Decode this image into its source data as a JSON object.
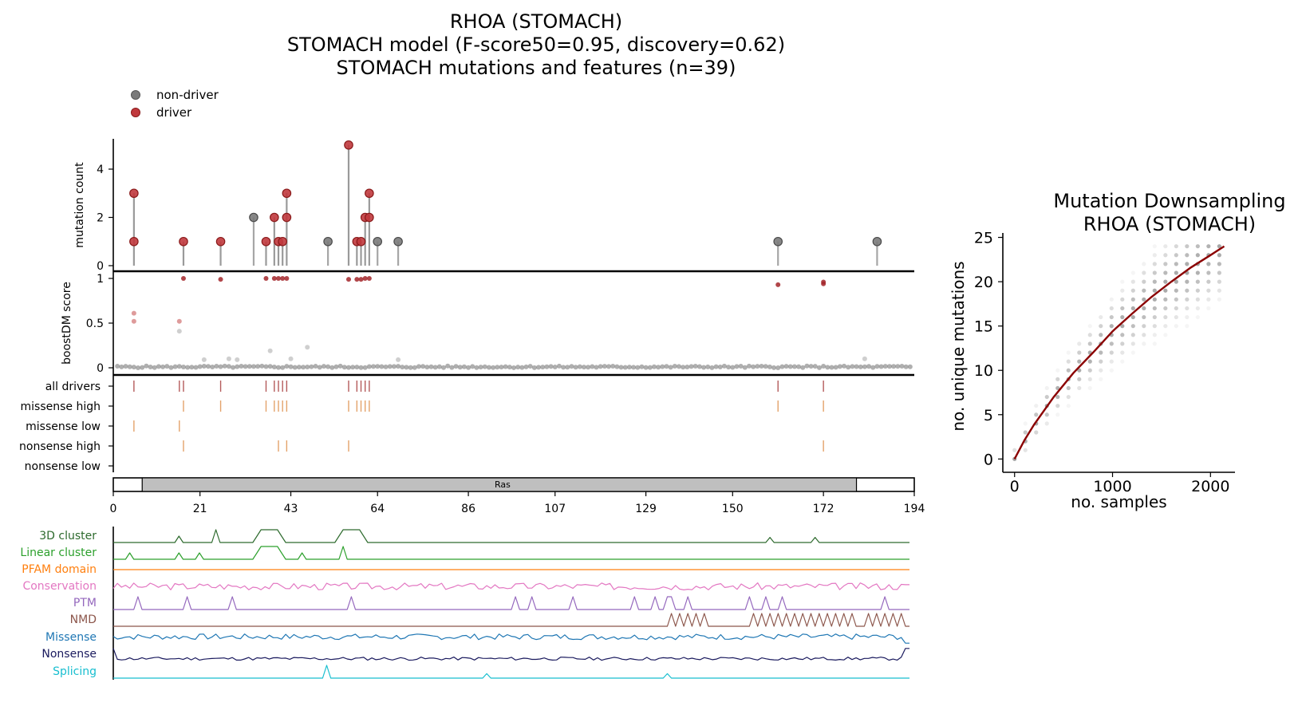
{
  "left_title": {
    "line1": "RHOA (STOMACH)",
    "line2": "STOMACH model (F-score50=0.95, discovery=0.62)",
    "line3": "STOMACH mutations and features (n=39)"
  },
  "right_title": {
    "line1": "Mutation Downsampling",
    "line2": "RHOA (STOMACH)"
  },
  "legend": {
    "items": [
      {
        "label": "non-driver",
        "color": "#666666"
      },
      {
        "label": "driver",
        "color": "#b21f24"
      }
    ]
  },
  "colors": {
    "driver": "#b21f24",
    "nondriver": "#6e6e6e",
    "all_drivers_tick": "#b45a5a",
    "class_tick": "#e3a26a",
    "domain_fill": "#bfbfbf",
    "trend_line": "#8b0000"
  },
  "chart_data": [
    {
      "type": "lollipop",
      "title": "RHOA (STOMACH)",
      "ylabel": "mutation count",
      "ylim": [
        0,
        5
      ],
      "yticks": [
        "0",
        "2",
        "4"
      ],
      "xlim": [
        0,
        194
      ],
      "points": [
        {
          "x": 5,
          "y": 1,
          "driver": true
        },
        {
          "x": 5,
          "y": 3,
          "driver": true
        },
        {
          "x": 17,
          "y": 1,
          "driver": true
        },
        {
          "x": 26,
          "y": 1,
          "driver": true
        },
        {
          "x": 34,
          "y": 2,
          "driver": false
        },
        {
          "x": 37,
          "y": 1,
          "driver": true
        },
        {
          "x": 39,
          "y": 2,
          "driver": true
        },
        {
          "x": 40,
          "y": 1,
          "driver": true
        },
        {
          "x": 41,
          "y": 1,
          "driver": true
        },
        {
          "x": 42,
          "y": 2,
          "driver": true
        },
        {
          "x": 42,
          "y": 3,
          "driver": true
        },
        {
          "x": 52,
          "y": 1,
          "driver": false
        },
        {
          "x": 57,
          "y": 5,
          "driver": true
        },
        {
          "x": 59,
          "y": 1,
          "driver": true
        },
        {
          "x": 60,
          "y": 1,
          "driver": true
        },
        {
          "x": 61,
          "y": 2,
          "driver": true
        },
        {
          "x": 62,
          "y": 2,
          "driver": true
        },
        {
          "x": 62,
          "y": 3,
          "driver": true
        },
        {
          "x": 64,
          "y": 1,
          "driver": false
        },
        {
          "x": 69,
          "y": 1,
          "driver": false
        },
        {
          "x": 161,
          "y": 1,
          "driver": false
        },
        {
          "x": 185,
          "y": 1,
          "driver": false
        }
      ]
    },
    {
      "type": "scatter",
      "ylabel": "boostDM score",
      "ylim": [
        0,
        1
      ],
      "yticks": [
        "0",
        "0.5",
        "1"
      ],
      "high_points": [
        {
          "x": 17,
          "y": 1.0
        },
        {
          "x": 26,
          "y": 0.99
        },
        {
          "x": 37,
          "y": 1.0
        },
        {
          "x": 39,
          "y": 1.0
        },
        {
          "x": 40,
          "y": 1.0
        },
        {
          "x": 41,
          "y": 1.0
        },
        {
          "x": 42,
          "y": 1.0
        },
        {
          "x": 57,
          "y": 0.99
        },
        {
          "x": 59,
          "y": 0.99
        },
        {
          "x": 60,
          "y": 0.99
        },
        {
          "x": 61,
          "y": 1.0
        },
        {
          "x": 62,
          "y": 1.0
        },
        {
          "x": 161,
          "y": 0.93
        },
        {
          "x": 172,
          "y": 0.94
        },
        {
          "x": 172,
          "y": 0.96
        }
      ],
      "mid_points": [
        {
          "x": 5,
          "y": 0.61
        },
        {
          "x": 5,
          "y": 0.52
        },
        {
          "x": 16,
          "y": 0.52
        },
        {
          "x": 16,
          "y": 0.41
        },
        {
          "x": 47,
          "y": 0.23
        },
        {
          "x": 38,
          "y": 0.19
        },
        {
          "x": 28,
          "y": 0.1
        },
        {
          "x": 22,
          "y": 0.09
        },
        {
          "x": 43,
          "y": 0.1
        },
        {
          "x": 30,
          "y": 0.09
        },
        {
          "x": 69,
          "y": 0.09
        },
        {
          "x": 182,
          "y": 0.1
        }
      ],
      "baseline_value": 0.01
    },
    {
      "type": "track-ticks",
      "rows": [
        {
          "label": "all drivers",
          "positions": [
            5,
            16,
            17,
            26,
            37,
            39,
            40,
            41,
            42,
            57,
            59,
            60,
            61,
            62,
            161,
            172
          ],
          "style": "all"
        },
        {
          "label": "missense high",
          "positions": [
            17,
            26,
            37,
            39,
            40,
            41,
            42,
            57,
            59,
            60,
            61,
            62,
            161,
            172
          ],
          "style": "class"
        },
        {
          "label": "missense low",
          "positions": [
            5,
            16
          ],
          "style": "class"
        },
        {
          "label": "nonsense high",
          "positions": [
            17,
            40,
            42,
            57,
            172
          ],
          "style": "class"
        },
        {
          "label": "nonsense low",
          "positions": [],
          "style": "class"
        }
      ],
      "domain": {
        "label": "Ras",
        "start": 7,
        "end": 180
      },
      "xticks": [
        "0",
        "21",
        "43",
        "64",
        "86",
        "107",
        "129",
        "150",
        "172",
        "194"
      ],
      "xtick_values": [
        0,
        21,
        43,
        64,
        86,
        107,
        129,
        150,
        172,
        194
      ]
    },
    {
      "type": "line",
      "name": "feature tracks",
      "xlim": [
        0,
        194
      ],
      "series": [
        {
          "name": "3D cluster",
          "color": "#2d6a2d",
          "kind": "peaks",
          "base": 0,
          "peaks": [
            [
              16,
              0.5,
              1
            ],
            [
              25,
              1.0,
              1
            ],
            [
              36,
              0.5,
              1
            ],
            [
              38,
              1.0,
              3
            ],
            [
              56,
              1.0,
              1
            ],
            [
              58,
              1.0,
              3
            ],
            [
              160,
              0.4,
              1
            ],
            [
              171,
              0.4,
              1
            ]
          ]
        },
        {
          "name": "Linear cluster",
          "color": "#2ca02c",
          "kind": "peaks",
          "base": 0,
          "peaks": [
            [
              4,
              0.5,
              1
            ],
            [
              16,
              0.5,
              1
            ],
            [
              21,
              0.5,
              1
            ],
            [
              38,
              1.0,
              3
            ],
            [
              46,
              0.5,
              1
            ],
            [
              56,
              1.0,
              1
            ]
          ]
        },
        {
          "name": "PFAM domain",
          "color": "#ff7f0e",
          "kind": "flat",
          "base": 0.5
        },
        {
          "name": "Conservation",
          "color": "#e377c2",
          "kind": "noise",
          "base": 0.5,
          "amp": 0.55,
          "seed": 3
        },
        {
          "name": "PTM",
          "color": "#9467bd",
          "kind": "peaks",
          "base": 0,
          "peaks": [
            [
              6,
              1,
              1
            ],
            [
              18,
              1,
              1
            ],
            [
              29,
              1,
              1
            ],
            [
              58,
              1,
              1
            ],
            [
              98,
              1,
              1
            ],
            [
              102,
              1,
              1
            ],
            [
              112,
              1,
              1
            ],
            [
              127,
              1,
              1
            ],
            [
              132,
              1,
              1
            ],
            [
              135,
              1,
              1
            ],
            [
              136,
              1,
              1
            ],
            [
              140,
              1,
              1
            ],
            [
              155,
              1,
              1
            ],
            [
              159,
              1,
              1
            ],
            [
              163,
              1,
              1
            ],
            [
              188,
              1,
              1
            ]
          ]
        },
        {
          "name": "NMD",
          "color": "#8c564b",
          "kind": "zigzag",
          "base": 0,
          "segments": [
            [
              135,
              145
            ],
            [
              155,
              180
            ],
            [
              183,
              193
            ]
          ]
        },
        {
          "name": "Missense",
          "color": "#1f77b4",
          "kind": "noise",
          "base": 0.55,
          "amp": 0.45,
          "seed": 7,
          "end_drop": true
        },
        {
          "name": "Nonsense",
          "color": "#1a1a5e",
          "kind": "noise",
          "base": 0.15,
          "amp": 0.25,
          "seed": 11,
          "end_rise": true
        },
        {
          "name": "Splicing",
          "color": "#17becf",
          "kind": "peaks",
          "base": 0,
          "peaks": [
            [
              52,
              1.0,
              1
            ],
            [
              91,
              0.35,
              1
            ],
            [
              135,
              0.35,
              1
            ]
          ]
        }
      ]
    },
    {
      "type": "scatter",
      "title": "Mutation Downsampling RHOA (STOMACH)",
      "xlabel": "no. samples",
      "ylabel": "no. unique mutations",
      "xlim": [
        -120,
        2250
      ],
      "ylim": [
        -1.5,
        25.5
      ],
      "xticks": [
        "0",
        "1000",
        "2000"
      ],
      "xtick_values": [
        0,
        1000,
        2000
      ],
      "yticks": [
        "0",
        "5",
        "10",
        "15",
        "20",
        "25"
      ],
      "ytick_values": [
        0,
        5,
        10,
        15,
        20,
        25
      ],
      "trend": {
        "x": [
          0,
          100,
          200,
          400,
          600,
          800,
          1000,
          1200,
          1400,
          1600,
          1800,
          2000,
          2140
        ],
        "y": [
          0,
          2.1,
          3.9,
          7.0,
          9.7,
          12.0,
          14.4,
          16.4,
          18.3,
          20.0,
          21.6,
          23.0,
          24.0
        ]
      },
      "sample_step": 110,
      "max_samples": 2140
    }
  ]
}
